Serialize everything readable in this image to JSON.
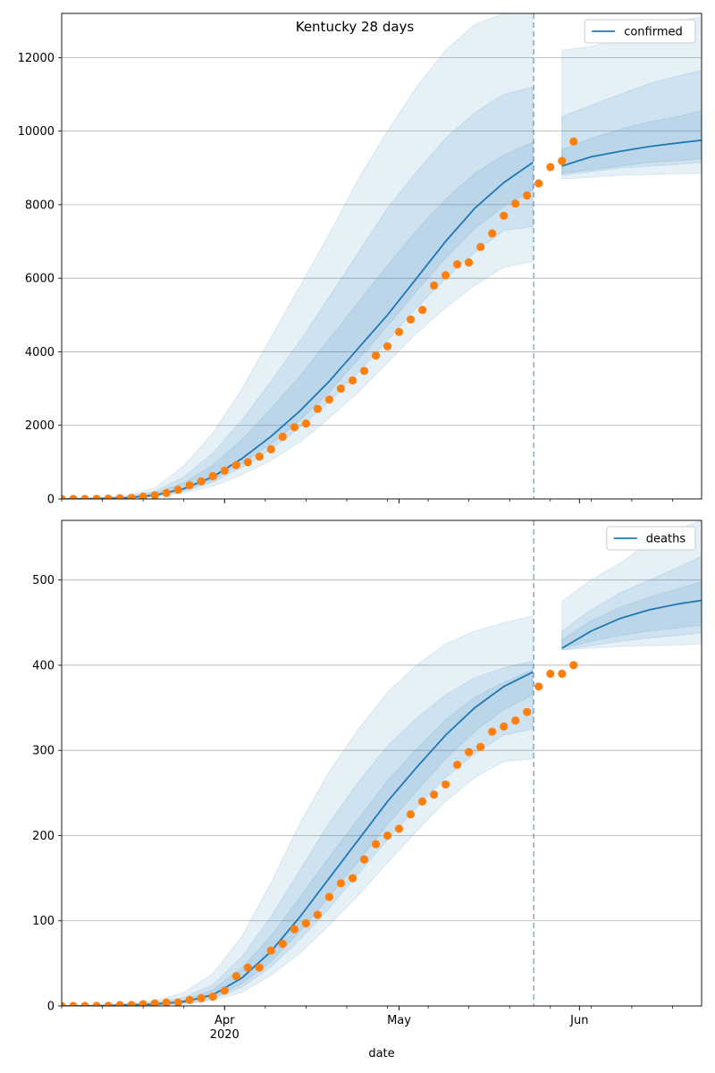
{
  "figure": {
    "title": "Kentucky 28 days",
    "xlabel": "date",
    "x_tick_labels": [
      {
        "date": "2020-04-01",
        "label": "Apr",
        "sub": "2020"
      },
      {
        "date": "2020-05-01",
        "label": "May",
        "sub": ""
      },
      {
        "date": "2020-06-01",
        "label": "Jun",
        "sub": ""
      }
    ],
    "colors": {
      "model": "#1f77b4",
      "observed": "#ff7f0e",
      "grid": "#b0b0b0",
      "band": "#1f77b4",
      "divider": "#1f77b4"
    }
  },
  "chart_data": [
    {
      "type": "line",
      "legend": [
        "confirmed"
      ],
      "legend_placement": "top-right",
      "grid": true,
      "xlim": [
        "2020-03-04",
        "2020-06-22"
      ],
      "ylim": [
        0,
        13200
      ],
      "y_ticks": [
        0,
        2000,
        4000,
        6000,
        8000,
        10000,
        12000
      ],
      "forecast_start": "2020-05-24",
      "model_dates": [
        "2020-03-04",
        "2020-03-10",
        "2020-03-15",
        "2020-03-20",
        "2020-03-25",
        "2020-03-30",
        "2020-04-04",
        "2020-04-09",
        "2020-04-14",
        "2020-04-19",
        "2020-04-24",
        "2020-04-29",
        "2020-05-04",
        "2020-05-09",
        "2020-05-14",
        "2020-05-19",
        "2020-05-24",
        "2020-05-29",
        "2020-06-03",
        "2020-06-08",
        "2020-06-13",
        "2020-06-18",
        "2020-06-22"
      ],
      "model": [
        0,
        10,
        30,
        100,
        280,
        600,
        1100,
        1700,
        2400,
        3200,
        4100,
        5000,
        6000,
        7000,
        7900,
        8600,
        9150,
        9050,
        9300,
        9450,
        9580,
        9680,
        9750
      ],
      "band_outer_upper": [
        0,
        30,
        90,
        300,
        900,
        1800,
        3000,
        4400,
        5800,
        7200,
        8700,
        10000,
        11200,
        12200,
        12900,
        13200,
        13200,
        12200,
        12300,
        12500,
        12800,
        13000,
        13100
      ],
      "band_outer_lower": [
        0,
        5,
        15,
        50,
        160,
        350,
        660,
        1050,
        1550,
        2200,
        2900,
        3700,
        4500,
        5200,
        5800,
        6300,
        6450,
        8700,
        8750,
        8800,
        8820,
        8840,
        8850
      ],
      "band_mid_upper": [
        0,
        20,
        60,
        200,
        600,
        1250,
        2150,
        3200,
        4300,
        5500,
        6700,
        7900,
        8900,
        9800,
        10500,
        11000,
        11200,
        10400,
        10700,
        11000,
        11300,
        11500,
        11650
      ],
      "band_mid_lower": [
        0,
        7,
        22,
        70,
        210,
        460,
        860,
        1350,
        1950,
        2650,
        3450,
        4300,
        5200,
        6000,
        6700,
        7300,
        7400,
        8800,
        8900,
        9000,
        9050,
        9100,
        9150
      ],
      "band_inner_upper": [
        0,
        15,
        45,
        150,
        440,
        920,
        1620,
        2450,
        3350,
        4350,
        5350,
        6350,
        7300,
        8150,
        8850,
        9350,
        9700,
        9500,
        9800,
        10050,
        10250,
        10400,
        10550
      ],
      "band_inner_lower": [
        0,
        8,
        26,
        85,
        240,
        520,
        970,
        1500,
        2150,
        2900,
        3800,
        4700,
        5650,
        6550,
        7350,
        7950,
        8400,
        8850,
        8950,
        9050,
        9150,
        9200,
        9250
      ],
      "observed_dates": [
        "2020-03-04",
        "2020-03-06",
        "2020-03-08",
        "2020-03-10",
        "2020-03-12",
        "2020-03-14",
        "2020-03-16",
        "2020-03-18",
        "2020-03-20",
        "2020-03-22",
        "2020-03-24",
        "2020-03-26",
        "2020-03-28",
        "2020-03-30",
        "2020-04-01",
        "2020-04-03",
        "2020-04-05",
        "2020-04-07",
        "2020-04-09",
        "2020-04-11",
        "2020-04-13",
        "2020-04-15",
        "2020-04-17",
        "2020-04-19",
        "2020-04-21",
        "2020-04-23",
        "2020-04-25",
        "2020-04-27",
        "2020-04-29",
        "2020-05-01",
        "2020-05-03",
        "2020-05-05",
        "2020-05-07",
        "2020-05-09",
        "2020-05-11",
        "2020-05-13",
        "2020-05-15",
        "2020-05-17",
        "2020-05-19",
        "2020-05-21",
        "2020-05-23",
        "2020-05-25",
        "2020-05-27",
        "2020-05-29",
        "2020-05-31"
      ],
      "observed": [
        0,
        0,
        1,
        3,
        10,
        20,
        30,
        60,
        100,
        160,
        250,
        370,
        480,
        620,
        770,
        920,
        1000,
        1150,
        1350,
        1690,
        1950,
        2050,
        2450,
        2700,
        3000,
        3220,
        3480,
        3900,
        4150,
        4540,
        4880,
        5140,
        5800,
        6080,
        6380,
        6430,
        6850,
        7220,
        7700,
        8030,
        8250,
        8580,
        9020,
        9190,
        9720
      ]
    },
    {
      "type": "line",
      "legend": [
        "deaths"
      ],
      "legend_placement": "top-right",
      "grid": true,
      "xlim": [
        "2020-03-04",
        "2020-06-22"
      ],
      "ylim": [
        0,
        570
      ],
      "y_ticks": [
        0,
        100,
        200,
        300,
        400,
        500
      ],
      "forecast_start": "2020-05-24",
      "model_dates": [
        "2020-03-04",
        "2020-03-10",
        "2020-03-15",
        "2020-03-20",
        "2020-03-25",
        "2020-03-30",
        "2020-04-04",
        "2020-04-09",
        "2020-04-14",
        "2020-04-19",
        "2020-04-24",
        "2020-04-29",
        "2020-05-04",
        "2020-05-09",
        "2020-05-14",
        "2020-05-19",
        "2020-05-24",
        "2020-05-29",
        "2020-06-03",
        "2020-06-08",
        "2020-06-13",
        "2020-06-18",
        "2020-06-22"
      ],
      "model": [
        0,
        0,
        1,
        2,
        5,
        13,
        33,
        64,
        105,
        150,
        195,
        240,
        280,
        318,
        350,
        375,
        392,
        420,
        440,
        455,
        465,
        472,
        476
      ],
      "band_outer_upper": [
        0,
        1,
        3,
        6,
        16,
        38,
        82,
        145,
        215,
        275,
        325,
        368,
        400,
        425,
        440,
        450,
        458,
        475,
        500,
        520,
        545,
        560,
        570
      ],
      "band_outer_lower": [
        0,
        0,
        0,
        1,
        2,
        6,
        16,
        36,
        62,
        95,
        130,
        168,
        205,
        240,
        268,
        287,
        290,
        418,
        420,
        422,
        423,
        424,
        425
      ],
      "band_mid_upper": [
        0,
        1,
        2,
        4,
        10,
        25,
        58,
        105,
        160,
        215,
        263,
        305,
        338,
        365,
        385,
        397,
        405,
        440,
        465,
        485,
        500,
        515,
        528
      ],
      "band_mid_lower": [
        0,
        0,
        0,
        1,
        3,
        8,
        22,
        46,
        78,
        115,
        155,
        195,
        233,
        268,
        296,
        318,
        325,
        418,
        423,
        428,
        432,
        435,
        438
      ],
      "band_inner_upper": [
        0,
        1,
        1,
        3,
        7,
        19,
        45,
        82,
        128,
        175,
        220,
        264,
        302,
        336,
        362,
        380,
        395,
        430,
        452,
        468,
        480,
        490,
        498
      ],
      "band_inner_lower": [
        0,
        0,
        0,
        1,
        4,
        10,
        26,
        52,
        88,
        128,
        170,
        213,
        252,
        290,
        322,
        348,
        365,
        420,
        428,
        435,
        440,
        444,
        447
      ],
      "observed_dates": [
        "2020-03-04",
        "2020-03-06",
        "2020-03-08",
        "2020-03-10",
        "2020-03-12",
        "2020-03-14",
        "2020-03-16",
        "2020-03-18",
        "2020-03-20",
        "2020-03-22",
        "2020-03-24",
        "2020-03-26",
        "2020-03-28",
        "2020-03-30",
        "2020-04-01",
        "2020-04-03",
        "2020-04-05",
        "2020-04-07",
        "2020-04-09",
        "2020-04-11",
        "2020-04-13",
        "2020-04-15",
        "2020-04-17",
        "2020-04-19",
        "2020-04-21",
        "2020-04-23",
        "2020-04-25",
        "2020-04-27",
        "2020-04-29",
        "2020-05-01",
        "2020-05-03",
        "2020-05-05",
        "2020-05-07",
        "2020-05-09",
        "2020-05-11",
        "2020-05-13",
        "2020-05-15",
        "2020-05-17",
        "2020-05-19",
        "2020-05-21",
        "2020-05-23",
        "2020-05-25",
        "2020-05-27",
        "2020-05-29",
        "2020-05-31"
      ],
      "observed": [
        0,
        0,
        0,
        0,
        0,
        1,
        1,
        2,
        3,
        4,
        4,
        7,
        9,
        11,
        18,
        35,
        45,
        45,
        65,
        73,
        90,
        97,
        107,
        128,
        144,
        150,
        172,
        190,
        200,
        208,
        225,
        240,
        248,
        260,
        283,
        298,
        304,
        322,
        328,
        335,
        345,
        375,
        390,
        390,
        400
      ]
    }
  ]
}
